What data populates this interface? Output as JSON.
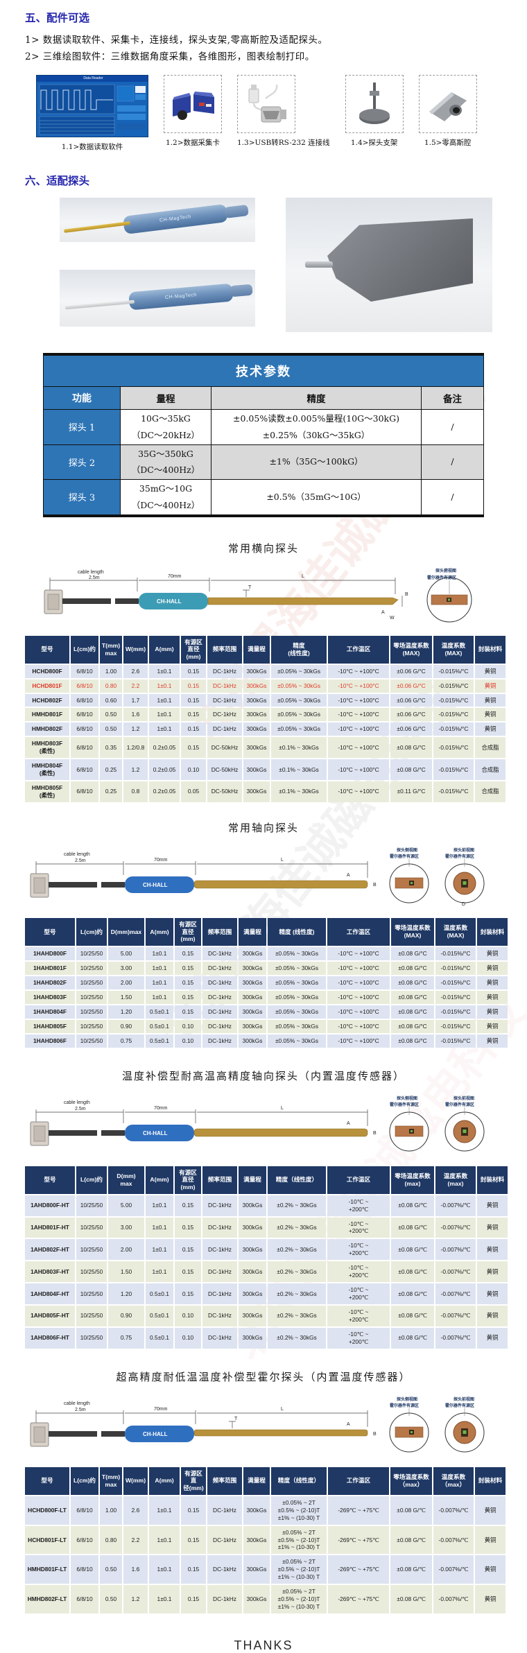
{
  "page": {
    "section5_title": "五、配件可选",
    "section5_items": [
      "1> 数据读取软件、采集卡，连接线，探头支架,零高斯腔及适配探头。",
      "2> 三维绘图软件：三维数据角度采集，各维图形，图表绘制打印。"
    ],
    "section6_title": "六、适配探头",
    "thanks": "THANKS",
    "watermark": "北京翠海佳诚磁电科技"
  },
  "accessories": [
    {
      "caption": "1.1>数据读取软件",
      "window_title": "Data Reader"
    },
    {
      "caption": "1.2>数据采集卡"
    },
    {
      "caption": "1.3>USB转RS-232 连接线"
    },
    {
      "caption": "1.4>探头支架"
    },
    {
      "caption": "1.5>零高斯腔"
    }
  ],
  "probe_photos": {
    "brand": "CH-MagTech"
  },
  "tech": {
    "title": "技术参数",
    "headers": {
      "func": "功能",
      "range": "量程",
      "accuracy": "精度",
      "note": "备注"
    },
    "rows": [
      {
        "name": "探头 1",
        "range": "10G～35kG\n（DC～20kHz）",
        "accuracy": "±0.05%读数±0.005%量程(10G～30kG)\n±0.25%（30kG～35kG）",
        "note": "/"
      },
      {
        "name": "探头 2",
        "range": "35G～350kG\n（DC～400Hz）",
        "accuracy": "±1%（35G～100kG）",
        "note": "/"
      },
      {
        "name": "探头 3",
        "range": "35mG～10G\n（DC～400Hz）",
        "accuracy": "±0.5%（35mG～10G）",
        "note": "/"
      }
    ]
  },
  "section_titles": {
    "transverse": "常用横向探头",
    "axial": "常用轴向探头",
    "ht_axial": "温度补偿型耐高温高精度轴向探头（内置温度传感器）",
    "lt_hall": "超高精度耐低温温度补偿型霍尔探头（内置温度传感器）"
  },
  "diagram": {
    "cable1": "cable length",
    "cable2": "2.5m",
    "len70": "70mm",
    "L": "L",
    "T": "T",
    "B": "B",
    "A": "A",
    "W": "W",
    "D": "D",
    "handle_label": "CH-HALL",
    "detail_top_view": "探头俯视图",
    "detail_side_view": "探头侧视图",
    "detail_front_view": "探头前视图",
    "active_area": "霍尔器件有源区"
  },
  "tables": {
    "transverse": {
      "headers": [
        "型号",
        "L(cm)约",
        "T(mm)\nmax",
        "W(mm)",
        "A(mm)",
        "有源区\n直径\n(mm)",
        "频率范围",
        "满量程",
        "精度\n(线性度)",
        "工作温区",
        "零场温度系数\n(MAX)",
        "温度系数\n(MAX)",
        "封装材料"
      ],
      "highlight_rows": [
        1
      ],
      "rows": [
        [
          "HCHD800F",
          "6/8/10",
          "1.00",
          "2.6",
          "1±0.1",
          "0.15",
          "DC-1kHz",
          "300kGs",
          "±0.05% ~ 30kGs",
          "-10°C ~ +100°C",
          "±0.06 G/°C",
          "-0.015%/°C",
          "黄铜"
        ],
        [
          "HCHD801F",
          "6/8/10",
          "0.80",
          "2.2",
          "1±0.1",
          "0.15",
          "DC-1kHz",
          "300kGs",
          "±0.05% ~ 30kGs",
          "-10°C ~ +100°C",
          "±0.06 G/°C",
          "-0.015%/°C",
          "黄铜"
        ],
        [
          "HCHD802F",
          "6/8/10",
          "0.60",
          "1.7",
          "1±0.1",
          "0.15",
          "DC-1kHz",
          "300kGs",
          "±0.05% ~ 30kGs",
          "-10°C ~ +100°C",
          "±0.06 G/°C",
          "-0.015%/°C",
          "黄铜"
        ],
        [
          "HMHD801F",
          "6/8/10",
          "0.50",
          "1.6",
          "1±0.1",
          "0.15",
          "DC-1kHz",
          "300kGs",
          "±0.05% ~ 30kGs",
          "-10°C ~ +100°C",
          "±0.06 G/°C",
          "-0.015%/°C",
          "黄铜"
        ],
        [
          "HMHD802F",
          "6/8/10",
          "0.50",
          "1.2",
          "1±0.1",
          "0.15",
          "DC-1kHz",
          "300kGs",
          "±0.05% ~ 30kGs",
          "-10°C ~ +100°C",
          "±0.06 G/°C",
          "-0.015%/°C",
          "黄铜"
        ],
        [
          "HMHD803F\n(柔性)",
          "6/8/10",
          "0.35",
          "1.2/0.8",
          "0.2±0.05",
          "0.15",
          "DC-50kHz",
          "300kGs",
          "±0.1% ~ 30kGs",
          "-10°C ~ +100°C",
          "±0.08 G/°C",
          "-0.015%/°C",
          "合成脂"
        ],
        [
          "HMHD804F\n(柔性)",
          "6/8/10",
          "0.25",
          "1.2",
          "0.2±0.05",
          "0.10",
          "DC-50kHz",
          "300kGs",
          "±0.1% ~ 30kGs",
          "-10°C ~ +100°C",
          "±0.08 G/°C",
          "-0.015%/°C",
          "合成脂"
        ],
        [
          "HMHD805F\n(柔性)",
          "6/8/10",
          "0.25",
          "0.8",
          "0.2±0.05",
          "0.05",
          "DC-50kHz",
          "300kGs",
          "±0.1% ~ 30kGs",
          "-10°C ~ +100°C",
          "±0.11 G/°C",
          "-0.015%/°C",
          "合成脂"
        ]
      ]
    },
    "axial": {
      "headers": [
        "型号",
        "L(cm)约",
        "D(mm)max",
        "A(mm)",
        "有源区\n直径\n(mm)",
        "频率范围",
        "满量程",
        "精度 (线性度)",
        "工作温区",
        "零场温度系数\n(MAX)",
        "温度系数\n(MAX)",
        "封装材料"
      ],
      "rows": [
        [
          "1HAHD800F",
          "10/25/50",
          "5.00",
          "1±0.1",
          "0.15",
          "DC-1kHz",
          "300kGs",
          "±0.05% ~ 30kGs",
          "-10°C ~ +100°C",
          "±0.08 G/°C",
          "-0.015%/°C",
          "黄铜"
        ],
        [
          "1HAHD801F",
          "10/25/50",
          "3.00",
          "1±0.1",
          "0.15",
          "DC-1kHz",
          "300kGs",
          "±0.05% ~ 30kGs",
          "-10°C ~ +100°C",
          "±0.08 G/°C",
          "-0.015%/°C",
          "黄铜"
        ],
        [
          "1HAHD802F",
          "10/25/50",
          "2.00",
          "1±0.1",
          "0.15",
          "DC-1kHz",
          "300kGs",
          "±0.05% ~ 30kGs",
          "-10°C ~ +100°C",
          "±0.08 G/°C",
          "-0.015%/°C",
          "黄铜"
        ],
        [
          "1HAHD803F",
          "10/25/50",
          "1.50",
          "1±0.1",
          "0.15",
          "DC-1kHz",
          "300kGs",
          "±0.05% ~ 30kGs",
          "-10°C ~ +100°C",
          "±0.08 G/°C",
          "-0.015%/°C",
          "黄铜"
        ],
        [
          "1HAHD804F",
          "10/25/50",
          "1.20",
          "0.5±0.1",
          "0.15",
          "DC-1kHz",
          "300kGs",
          "±0.05% ~ 30kGs",
          "-10°C ~ +100°C",
          "±0.08 G/°C",
          "-0.015%/°C",
          "黄铜"
        ],
        [
          "1HAHD805F",
          "10/25/50",
          "0.90",
          "0.5±0.1",
          "0.10",
          "DC-1kHz",
          "300kGs",
          "±0.05% ~ 30kGs",
          "-10°C ~ +100°C",
          "±0.08 G/°C",
          "-0.015%/°C",
          "黄铜"
        ],
        [
          "1HAHD806F",
          "10/25/50",
          "0.75",
          "0.5±0.1",
          "0.10",
          "DC-1kHz",
          "300kGs",
          "±0.05% ~ 30kGs",
          "-10°C ~ +100°C",
          "±0.08 G/°C",
          "-0.015%/°C",
          "黄铜"
        ]
      ]
    },
    "ht_axial": {
      "headers": [
        "型号",
        "L(cm)约",
        "D(mm)\nmax",
        "A(mm)",
        "有源区\n直径\n(mm)",
        "频率范围",
        "满量程",
        "精度（线性度）",
        "工作温区",
        "零场温度系数\n(max)",
        "温度系数(max)",
        "封装材料"
      ],
      "rows": [
        [
          "1AHD800F-HT",
          "10/25/50",
          "5.00",
          "1±0.1",
          "0.15",
          "DC-1kHz",
          "300kGs",
          "±0.2% ~ 30kGs",
          "-10℃ ~\n+200℃",
          "±0.08 G/℃",
          "-0.007%/℃",
          "黄铜"
        ],
        [
          "1AHD801F-HT",
          "10/25/50",
          "3.00",
          "1±0.1",
          "0.15",
          "DC-1kHz",
          "300kGs",
          "±0.2% ~ 30kGs",
          "-10℃ ~\n+200℃",
          "±0.08 G/℃",
          "-0.007%/℃",
          "黄铜"
        ],
        [
          "1AHD802F-HT",
          "10/25/50",
          "2.00",
          "1±0.1",
          "0.15",
          "DC-1kHz",
          "300kGs",
          "±0.2% ~ 30kGs",
          "-10℃ ~\n+200℃",
          "±0.08 G/℃",
          "-0.007%/℃",
          "黄铜"
        ],
        [
          "1AHD803F-HT",
          "10/25/50",
          "1.50",
          "1±0.1",
          "0.15",
          "DC-1kHz",
          "300kGs",
          "±0.2% ~ 30kGs",
          "-10℃ ~\n+200℃",
          "±0.08 G/℃",
          "-0.007%/℃",
          "黄铜"
        ],
        [
          "1AHD804F-HT",
          "10/25/50",
          "1.20",
          "0.5±0.1",
          "0.15",
          "DC-1kHz",
          "300kGs",
          "±0.2% ~ 30kGs",
          "-10℃ ~\n+200℃",
          "±0.08 G/℃",
          "-0.007%/℃",
          "黄铜"
        ],
        [
          "1AHD805F-HT",
          "10/25/50",
          "0.90",
          "0.5±0.1",
          "0.10",
          "DC-1kHz",
          "300kGs",
          "±0.2% ~ 30kGs",
          "-10℃ ~\n+200℃",
          "±0.08 G/℃",
          "-0.007%/℃",
          "黄铜"
        ],
        [
          "1AHD806F-HT",
          "10/25/50",
          "0.75",
          "0.5±0.1",
          "0.10",
          "DC-1kHz",
          "300kGs",
          "±0.2% ~ 30kGs",
          "-10℃ ~\n+200℃",
          "±0.08 G/℃",
          "-0.007%/℃",
          "黄铜"
        ]
      ]
    },
    "lt_hall": {
      "headers": [
        "型号",
        "L(cm)约",
        "T(mm)\nmax",
        "W(mm)",
        "A(mm)",
        "有源区直\n径(mm)",
        "频率范围",
        "满量程",
        "精度（线性度）",
        "工作温区",
        "零场温度系数\n（max）",
        "温度系数\n（max）",
        "封装材料"
      ],
      "rows": [
        [
          "HCHD800F-LT",
          "6/8/10",
          "1.00",
          "2.6",
          "1±0.1",
          "0.15",
          "DC-1kHz",
          "300kGs",
          "±0.05% ~ 2T\n±0.5% ~ (2-10)T\n±1% ~ (10-30) T",
          "-269℃ ~ +75℃",
          "±0.08 G/℃",
          "-0.007%/℃",
          "黄铜"
        ],
        [
          "HCHD801F-LT",
          "6/8/10",
          "0.80",
          "2.2",
          "1±0.1",
          "0.15",
          "DC-1kHz",
          "300kGs",
          "±0.05% ~ 2T\n±0.5% ~ (2-10)T\n±1% ~ (10-30) T",
          "-269℃ ~ +75℃",
          "±0.08 G/℃",
          "-0.007%/℃",
          "黄铜"
        ],
        [
          "HMHD801F-LT",
          "6/8/10",
          "0.50",
          "1.6",
          "1±0.1",
          "0.15",
          "DC-1kHz",
          "300kGs",
          "±0.05% ~ 2T\n±0.5% ~ (2-10)T\n±1% ~ (10-30) T",
          "-269℃ ~ +75℃",
          "±0.08 G/℃",
          "-0.007%/℃",
          "黄铜"
        ],
        [
          "HMHD802F-LT",
          "6/8/10",
          "0.50",
          "1.2",
          "1±0.1",
          "0.15",
          "DC-1kHz",
          "300kGs",
          "±0.05% ~ 2T\n±0.5% ~ (2-10)T\n±1% ~ (10-30) T",
          "-269℃ ~ +75℃",
          "±0.08 G/℃",
          "-0.007%/℃",
          "黄铜"
        ]
      ]
    }
  }
}
